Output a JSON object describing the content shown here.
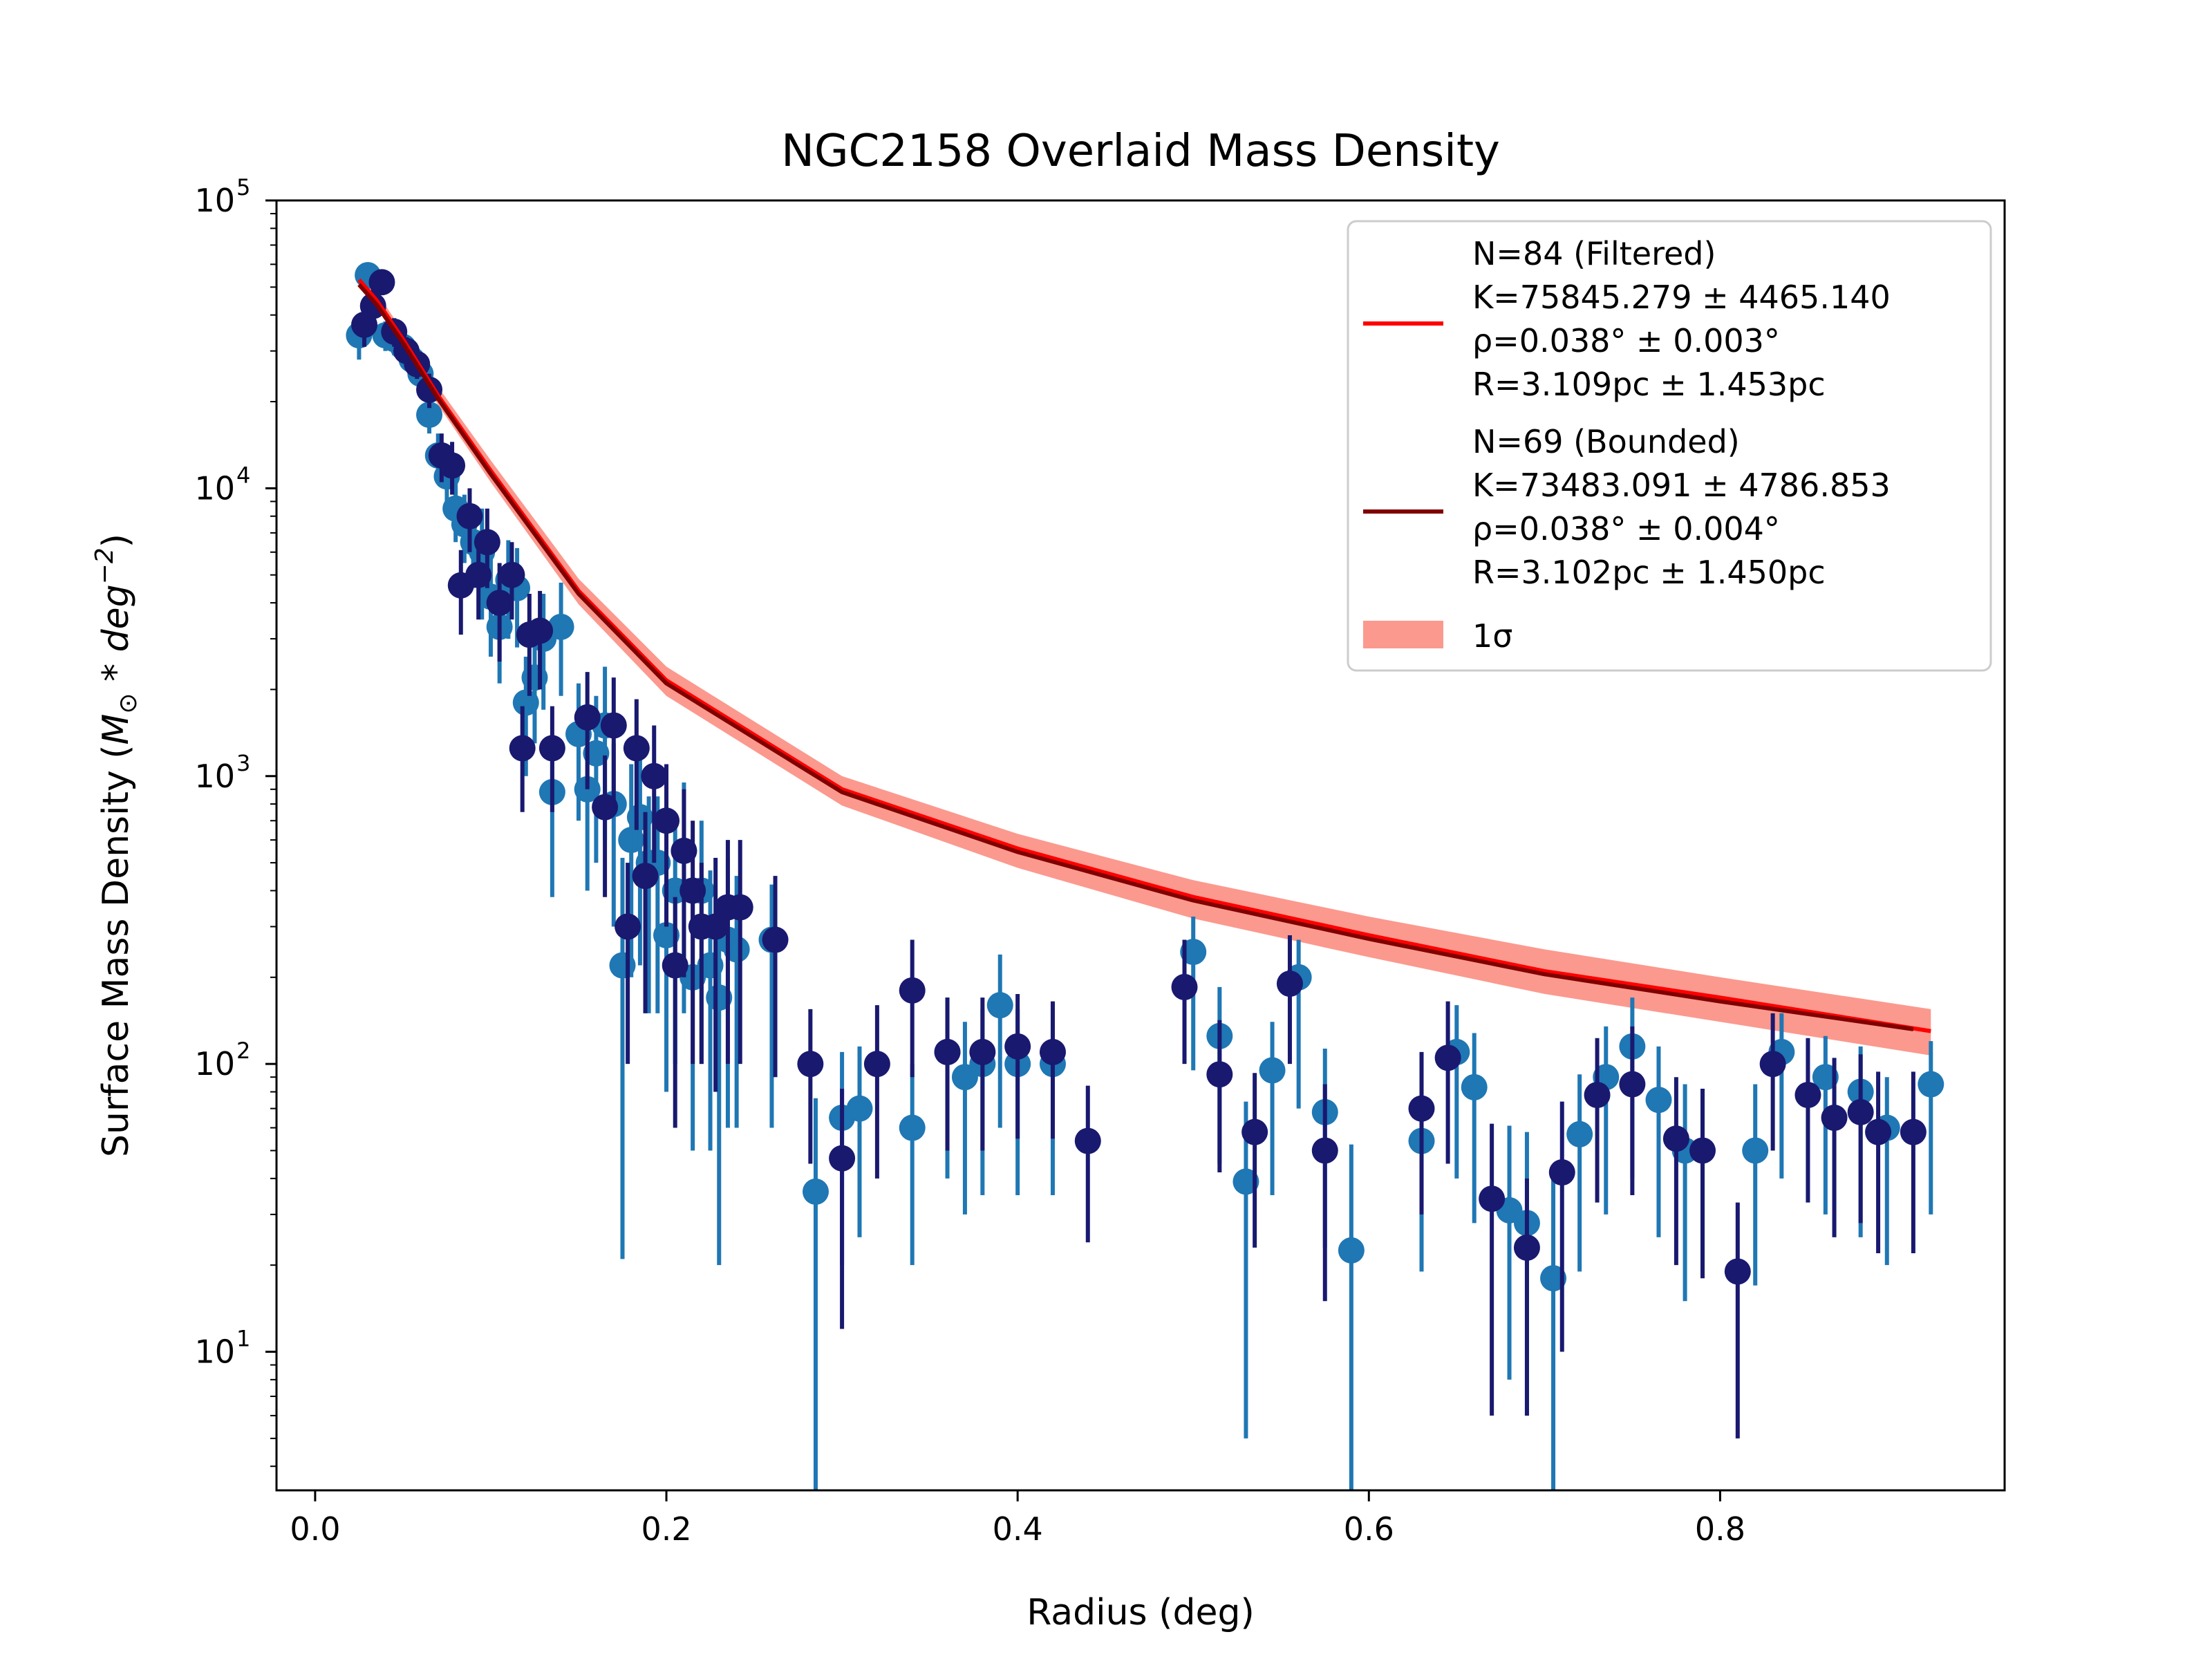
{
  "chart_data": {
    "type": "scatter",
    "title": "NGC2158 Overlaid Mass Density",
    "xlabel": "Radius (deg)",
    "ylabel_main": "Surface Mass Density (",
    "ylabel_math": "M",
    "ylabel_sub": "⊙",
    "ylabel_mid": " * ",
    "ylabel_deg": "deg",
    "ylabel_exp": "−2",
    "ylabel_close": ")",
    "xlim": [
      -0.022,
      0.962
    ],
    "ylim": [
      3.3,
      100000
    ],
    "yscale": "log",
    "grid": false,
    "legend_position": "top-right",
    "xticks": [
      {
        "value": 0.0,
        "label": "0.0"
      },
      {
        "value": 0.2,
        "label": "0.2"
      },
      {
        "value": 0.4,
        "label": "0.4"
      },
      {
        "value": 0.6,
        "label": "0.6"
      },
      {
        "value": 0.8,
        "label": "0.8"
      }
    ],
    "yticks": [
      {
        "value": 10,
        "base": "10",
        "exp": "1"
      },
      {
        "value": 100,
        "base": "10",
        "exp": "2"
      },
      {
        "value": 1000,
        "base": "10",
        "exp": "3"
      },
      {
        "value": 10000,
        "base": "10",
        "exp": "4"
      },
      {
        "value": 100000,
        "base": "10",
        "exp": "5"
      }
    ],
    "colors": {
      "filtered_points": "#1f77b4",
      "bounded_points": "#191970",
      "filtered_fit": "#ff0000",
      "bounded_fit": "#800000",
      "band": "#fa8072"
    },
    "legend": [
      {
        "key": "filtered",
        "lines": [
          "N=84 (Filtered)",
          "K=75845.279 ± 4465.140",
          "ρ=0.038° ± 0.003°",
          "R=3.109pc ± 1.453pc"
        ]
      },
      {
        "key": "bounded",
        "lines": [
          "N=69 (Bounded)",
          "K=73483.091 ± 4786.853",
          "ρ=0.038° ± 0.004°",
          "R=3.102pc ± 1.450pc"
        ]
      },
      {
        "key": "band",
        "lines": [
          "1σ"
        ]
      }
    ],
    "series": [
      {
        "key": "filtered_fit",
        "kind": "line",
        "x": [
          0.025,
          0.035,
          0.05,
          0.07,
          0.1,
          0.15,
          0.2,
          0.3,
          0.4,
          0.5,
          0.6,
          0.7,
          0.8,
          0.92
        ],
        "y": [
          53000,
          45000,
          33000,
          21000,
          11500,
          4400,
          2150,
          900,
          560,
          380,
          280,
          210,
          170,
          130
        ],
        "band_lower": [
          50000,
          42500,
          31000,
          19500,
          10500,
          3950,
          1900,
          790,
          480,
          320,
          235,
          175,
          140,
          107
        ],
        "band_upper": [
          56500,
          48000,
          35000,
          22500,
          12500,
          4850,
          2400,
          1000,
          630,
          435,
          325,
          250,
          200,
          155
        ]
      },
      {
        "key": "bounded_fit",
        "kind": "line",
        "x": [
          0.025,
          0.035,
          0.05,
          0.07,
          0.1,
          0.15,
          0.2,
          0.3,
          0.4,
          0.5,
          0.6,
          0.7,
          0.8,
          0.91
        ],
        "y": [
          51000,
          43500,
          32000,
          20500,
          11200,
          4300,
          2100,
          880,
          545,
          370,
          272,
          205,
          165,
          132
        ]
      },
      {
        "key": "filtered_points",
        "kind": "errorbar",
        "x": [
          0.025,
          0.03,
          0.04,
          0.045,
          0.05,
          0.055,
          0.06,
          0.065,
          0.07,
          0.075,
          0.08,
          0.085,
          0.09,
          0.095,
          0.1,
          0.105,
          0.11,
          0.115,
          0.12,
          0.125,
          0.13,
          0.135,
          0.14,
          0.15,
          0.155,
          0.16,
          0.165,
          0.17,
          0.175,
          0.18,
          0.185,
          0.19,
          0.195,
          0.2,
          0.205,
          0.21,
          0.215,
          0.22,
          0.225,
          0.23,
          0.235,
          0.24,
          0.26,
          0.285,
          0.3,
          0.31,
          0.34,
          0.36,
          0.37,
          0.38,
          0.39,
          0.4,
          0.42,
          0.5,
          0.515,
          0.53,
          0.545,
          0.56,
          0.575,
          0.59,
          0.63,
          0.65,
          0.66,
          0.68,
          0.69,
          0.705,
          0.72,
          0.735,
          0.75,
          0.765,
          0.78,
          0.82,
          0.835,
          0.86,
          0.88,
          0.895,
          0.92
        ],
        "y": [
          34000,
          55000,
          34000,
          33000,
          31000,
          28000,
          25000,
          18000,
          13000,
          11000,
          8500,
          7500,
          6500,
          6000,
          4200,
          3300,
          4800,
          4500,
          1800,
          2200,
          3000,
          880,
          3300,
          1400,
          900,
          1200,
          1500,
          800,
          220,
          600,
          720,
          500,
          500,
          280,
          400,
          550,
          200,
          400,
          220,
          170,
          270,
          250,
          270,
          36,
          65,
          70,
          60,
          110,
          90,
          100,
          160,
          100,
          100,
          245,
          125,
          39,
          95,
          200,
          68,
          22.5,
          54,
          110,
          83,
          31,
          28,
          18,
          57,
          90,
          115,
          75,
          50,
          50,
          110,
          90,
          80,
          60,
          85
        ],
        "yerr_low": [
          6000,
          6000,
          4000,
          4000,
          3500,
          3000,
          3000,
          2500,
          2500,
          2500,
          2000,
          2000,
          2000,
          2500,
          1600,
          1200,
          1800,
          1700,
          800,
          900,
          1300,
          500,
          1400,
          700,
          500,
          700,
          900,
          500,
          199,
          400,
          500,
          350,
          350,
          200,
          300,
          400,
          150,
          300,
          170,
          150,
          210,
          190,
          210,
          33,
          45,
          45,
          40,
          70,
          60,
          65,
          100,
          65,
          65,
          150,
          80,
          34,
          60,
          130,
          45,
          20,
          35,
          70,
          55,
          23,
          22,
          15,
          38,
          60,
          75,
          50,
          35,
          33,
          70,
          60,
          55,
          40,
          55
        ],
        "yerr_high": [
          6000,
          6000,
          4000,
          4000,
          3500,
          3000,
          3000,
          2500,
          2500,
          2500,
          2000,
          2000,
          2000,
          2500,
          1600,
          1300,
          1800,
          1700,
          800,
          900,
          1300,
          500,
          1400,
          700,
          500,
          700,
          900,
          500,
          300,
          500,
          500,
          350,
          350,
          250,
          300,
          400,
          200,
          300,
          250,
          200,
          250,
          200,
          150,
          40,
          45,
          45,
          40,
          60,
          50,
          55,
          80,
          55,
          55,
          80,
          60,
          35,
          45,
          70,
          45,
          30,
          35,
          50,
          45,
          30,
          30,
          25,
          35,
          45,
          55,
          40,
          35,
          35,
          40,
          35,
          35,
          30,
          35
        ]
      },
      {
        "key": "bounded_points",
        "kind": "errorbar",
        "x": [
          0.028,
          0.033,
          0.038,
          0.045,
          0.052,
          0.058,
          0.065,
          0.072,
          0.078,
          0.083,
          0.088,
          0.093,
          0.098,
          0.105,
          0.112,
          0.118,
          0.122,
          0.128,
          0.135,
          0.155,
          0.165,
          0.17,
          0.178,
          0.183,
          0.188,
          0.193,
          0.2,
          0.205,
          0.21,
          0.215,
          0.22,
          0.228,
          0.235,
          0.242,
          0.262,
          0.282,
          0.3,
          0.32,
          0.34,
          0.36,
          0.38,
          0.4,
          0.42,
          0.44,
          0.495,
          0.515,
          0.535,
          0.555,
          0.575,
          0.63,
          0.645,
          0.67,
          0.69,
          0.71,
          0.73,
          0.75,
          0.775,
          0.79,
          0.81,
          0.83,
          0.85,
          0.865,
          0.88,
          0.89,
          0.91
        ],
        "y": [
          37000,
          43000,
          52000,
          35000,
          30000,
          27000,
          22000,
          13000,
          12000,
          4600,
          8000,
          5000,
          6500,
          4000,
          5000,
          1250,
          3100,
          3200,
          1250,
          1600,
          780,
          1500,
          300,
          1250,
          450,
          1000,
          700,
          220,
          550,
          400,
          300,
          300,
          350,
          350,
          270,
          100,
          47,
          100,
          180,
          110,
          110,
          115,
          110,
          54,
          185,
          92,
          58,
          190,
          50,
          70,
          105,
          34,
          23,
          42,
          78,
          85,
          55,
          50,
          19,
          100,
          78,
          65,
          68,
          58,
          58
        ],
        "yerr_low": [
          6000,
          6000,
          5000,
          4000,
          3500,
          3000,
          3000,
          2500,
          2500,
          1500,
          2000,
          1500,
          2000,
          1500,
          1500,
          500,
          1200,
          1200,
          500,
          700,
          400,
          700,
          200,
          600,
          300,
          500,
          400,
          160,
          350,
          300,
          200,
          220,
          250,
          250,
          180,
          55,
          35,
          60,
          90,
          60,
          60,
          60,
          55,
          30,
          85,
          50,
          35,
          90,
          35,
          40,
          60,
          28,
          17,
          32,
          45,
          50,
          35,
          32,
          14,
          50,
          45,
          40,
          40,
          36,
          36
        ],
        "yerr_high": [
          6000,
          6000,
          5000,
          4000,
          3500,
          3000,
          3000,
          2500,
          2500,
          1500,
          2000,
          1500,
          2000,
          1500,
          1500,
          500,
          1200,
          1200,
          500,
          700,
          400,
          700,
          200,
          600,
          300,
          500,
          400,
          160,
          350,
          300,
          200,
          220,
          250,
          250,
          180,
          55,
          35,
          60,
          90,
          60,
          60,
          60,
          55,
          30,
          85,
          50,
          35,
          90,
          35,
          40,
          60,
          28,
          17,
          32,
          45,
          50,
          35,
          32,
          14,
          50,
          45,
          40,
          40,
          36,
          36
        ]
      }
    ]
  }
}
